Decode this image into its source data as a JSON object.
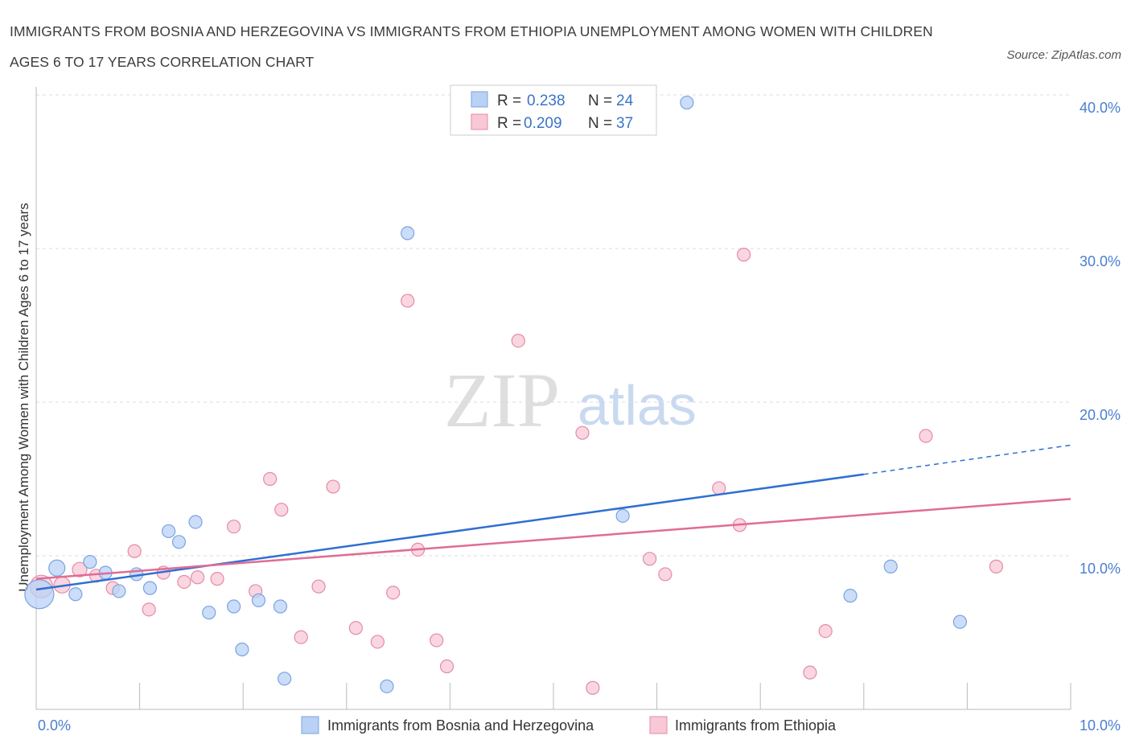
{
  "header": {
    "title": "IMMIGRANTS FROM BOSNIA AND HERZEGOVINA VS IMMIGRANTS FROM ETHIOPIA UNEMPLOYMENT AMONG WOMEN WITH CHILDREN AGES 6 TO 17 YEARS CORRELATION CHART",
    "source": "Source: ZipAtlas.com"
  },
  "watermark": {
    "zip": "ZIP",
    "atlas": "atlas"
  },
  "stats_box": {
    "rows": [
      {
        "r_label": "R =",
        "r_value": "0.238",
        "n_label": "N =",
        "n_value": "24",
        "color": "#b9d1f5"
      },
      {
        "r_label": "R =",
        "r_value": "0.209",
        "n_label": "N =",
        "n_value": "37",
        "color": "#f8c8d6"
      }
    ]
  },
  "legend": [
    {
      "label": "Immigrants from Bosnia and Herzegovina",
      "color": "#b9d1f5"
    },
    {
      "label": "Immigrants from Ethiopia",
      "color": "#f8c8d6"
    }
  ],
  "chart_data": {
    "type": "scatter",
    "title": "IMMIGRANTS FROM BOSNIA AND HERZEGOVINA VS IMMIGRANTS FROM ETHIOPIA UNEMPLOYMENT AMONG WOMEN WITH CHILDREN AGES 6 TO 17 YEARS CORRELATION CHART",
    "xlabel": "",
    "ylabel": "Unemployment Among Women with Children Ages 6 to 17 years",
    "xlim": [
      0,
      10
    ],
    "ylim": [
      0,
      40
    ],
    "x_tick_labels": [
      {
        "value": 0,
        "label": "0.0%"
      },
      {
        "value": 10,
        "label": "10.0%"
      }
    ],
    "y_tick_labels": [
      {
        "value": 10,
        "label": "10.0%"
      },
      {
        "value": 20,
        "label": "20.0%"
      },
      {
        "value": 30,
        "label": "30.0%"
      },
      {
        "value": 40,
        "label": "40.0%"
      }
    ],
    "grid": "horizontal dashed",
    "legend_position": "bottom-center",
    "series": [
      {
        "name": "Immigrants from Bosnia and Herzegovina",
        "color": "#b9d1f5",
        "stroke": "#7aa3e0",
        "line_color": "#2f6fd1",
        "trend": {
          "x0": 0,
          "y0": 7.8,
          "x1": 8.0,
          "y1": 15.3,
          "dash_to_x": 10,
          "dash_to_y": 17.2
        },
        "points": [
          [
            0.03,
            7.5,
            18
          ],
          [
            0.2,
            9.2,
            10
          ],
          [
            0.38,
            7.5,
            8
          ],
          [
            0.52,
            9.6,
            8
          ],
          [
            0.67,
            8.9,
            8
          ],
          [
            0.8,
            7.7,
            8
          ],
          [
            0.97,
            8.8,
            8
          ],
          [
            1.1,
            7.9,
            8
          ],
          [
            1.28,
            11.6,
            8
          ],
          [
            1.38,
            10.9,
            8
          ],
          [
            1.54,
            12.2,
            8
          ],
          [
            1.67,
            6.3,
            8
          ],
          [
            1.91,
            6.7,
            8
          ],
          [
            1.99,
            3.9,
            8
          ],
          [
            2.15,
            7.1,
            8
          ],
          [
            2.36,
            6.7,
            8
          ],
          [
            2.4,
            2.0,
            8
          ],
          [
            3.39,
            1.5,
            8
          ],
          [
            3.59,
            31.0,
            8
          ],
          [
            5.67,
            12.6,
            8
          ],
          [
            6.29,
            39.5,
            8
          ],
          [
            7.87,
            7.4,
            8
          ],
          [
            8.26,
            9.3,
            8
          ],
          [
            8.93,
            5.7,
            8
          ]
        ]
      },
      {
        "name": "Immigrants from Ethiopia",
        "color": "#f8c8d6",
        "stroke": "#e58aa6",
        "line_color": "#e06c95",
        "trend": {
          "x0": 0,
          "y0": 8.5,
          "x1": 10,
          "y1": 13.7
        },
        "points": [
          [
            0.05,
            8.0,
            14
          ],
          [
            0.25,
            8.1,
            10
          ],
          [
            0.42,
            9.1,
            9
          ],
          [
            0.58,
            8.7,
            8
          ],
          [
            0.74,
            7.9,
            8
          ],
          [
            0.95,
            10.3,
            8
          ],
          [
            1.09,
            6.5,
            8
          ],
          [
            1.23,
            8.9,
            8
          ],
          [
            1.43,
            8.3,
            8
          ],
          [
            1.56,
            8.6,
            8
          ],
          [
            1.75,
            8.5,
            8
          ],
          [
            1.91,
            11.9,
            8
          ],
          [
            2.12,
            7.7,
            8
          ],
          [
            2.26,
            15.0,
            8
          ],
          [
            2.37,
            13.0,
            8
          ],
          [
            2.56,
            4.7,
            8
          ],
          [
            2.73,
            8.0,
            8
          ],
          [
            2.87,
            14.5,
            8
          ],
          [
            3.09,
            5.3,
            8
          ],
          [
            3.3,
            4.4,
            8
          ],
          [
            3.45,
            7.6,
            8
          ],
          [
            3.59,
            26.6,
            8
          ],
          [
            3.69,
            10.4,
            8
          ],
          [
            3.87,
            4.5,
            8
          ],
          [
            3.97,
            2.8,
            8
          ],
          [
            4.66,
            24.0,
            8
          ],
          [
            5.28,
            18.0,
            8
          ],
          [
            5.38,
            1.4,
            8
          ],
          [
            5.93,
            9.8,
            8
          ],
          [
            6.08,
            8.8,
            8
          ],
          [
            6.6,
            14.4,
            8
          ],
          [
            6.8,
            12.0,
            8
          ],
          [
            6.84,
            29.6,
            8
          ],
          [
            7.48,
            2.4,
            8
          ],
          [
            7.63,
            5.1,
            8
          ],
          [
            8.6,
            17.8,
            8
          ],
          [
            9.28,
            9.3,
            8
          ]
        ]
      }
    ]
  }
}
